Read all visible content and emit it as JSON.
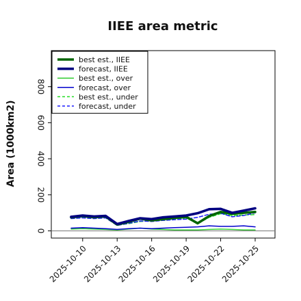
{
  "chart_data": {
    "type": "line",
    "title": "IIEE area metric",
    "ylabel": "Area (1000km2)",
    "xlabel": "",
    "ylim": [
      -40,
      1000
    ],
    "x": [
      "2025-10-09",
      "2025-10-10",
      "2025-10-11",
      "2025-10-12",
      "2025-10-13",
      "2025-10-14",
      "2025-10-15",
      "2025-10-16",
      "2025-10-17",
      "2025-10-18",
      "2025-10-19",
      "2025-10-20",
      "2025-10-21",
      "2025-10-22",
      "2025-10-23",
      "2025-10-24",
      "2025-10-25"
    ],
    "xtick_labels": [
      "2025-10-10",
      "2025-10-13",
      "2025-10-16",
      "2025-10-19",
      "2025-10-22",
      "2025-10-25"
    ],
    "highlighted_xtick": "2025-10-16",
    "highlight_color": "#2e8b2e",
    "yticks": [
      0,
      200,
      400,
      600,
      800
    ],
    "legend_position": "top-left",
    "series": [
      {
        "name": "best est., IIEE",
        "color": "#006400",
        "style": "solid-thick",
        "values": [
          75,
          82,
          76,
          80,
          35,
          50,
          68,
          58,
          65,
          72,
          78,
          42,
          82,
          105,
          95,
          100,
          105
        ]
      },
      {
        "name": "forecast, IIEE",
        "color": "#000080",
        "style": "solid-thick",
        "values": [
          78,
          85,
          80,
          83,
          38,
          55,
          70,
          65,
          75,
          80,
          85,
          98,
          120,
          122,
          100,
          112,
          125
        ]
      },
      {
        "name": "best est., over",
        "color": "#32cd32",
        "style": "solid",
        "values": [
          10,
          12,
          10,
          8,
          5,
          10,
          15,
          10,
          8,
          5,
          5,
          5,
          8,
          10,
          8,
          5,
          5
        ]
      },
      {
        "name": "forecast, over",
        "color": "#0000cd",
        "style": "solid",
        "values": [
          15,
          18,
          15,
          12,
          8,
          12,
          15,
          12,
          15,
          18,
          20,
          22,
          28,
          25,
          25,
          28,
          22
        ]
      },
      {
        "name": "best est., under",
        "color": "#22dd22",
        "style": "dashed",
        "values": [
          72,
          78,
          72,
          75,
          32,
          40,
          52,
          55,
          58,
          62,
          72,
          40,
          75,
          95,
          85,
          88,
          90
        ]
      },
      {
        "name": "forecast, under",
        "color": "#1a1aff",
        "style": "dashed",
        "values": [
          68,
          72,
          68,
          72,
          30,
          42,
          55,
          52,
          58,
          62,
          65,
          75,
          92,
          98,
          78,
          85,
          100
        ]
      }
    ]
  }
}
